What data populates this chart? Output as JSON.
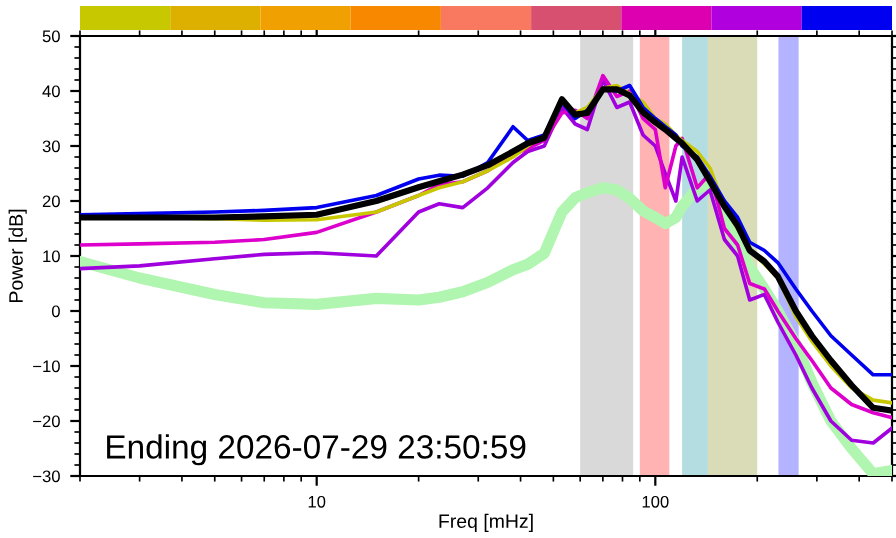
{
  "chart_data": {
    "type": "line",
    "xlabel": "Freq [mHz]",
    "ylabel": "Power [dB]",
    "log": "x",
    "annotations": [
      "Ending 2026-07-29 23:50:59"
    ],
    "x": [
      2,
      3,
      5,
      7,
      10,
      15,
      20,
      23,
      27,
      32,
      38,
      42,
      47,
      53,
      58,
      63,
      70,
      77,
      84,
      92,
      100,
      107,
      115,
      120,
      133,
      145,
      160,
      175,
      190,
      210,
      230,
      260,
      290,
      330,
      380,
      440,
      500
    ],
    "xlim": [
      2,
      500
    ],
    "xticks": [
      10,
      100
    ],
    "ylim": [
      -30,
      50
    ],
    "yticks": [
      -30,
      -20,
      -10,
      0,
      10,
      20,
      30,
      40,
      50
    ],
    "bands": [
      {
        "axis": "x",
        "from": 60,
        "to": 86,
        "color": "#d9d9d9"
      },
      {
        "axis": "x",
        "from": 90,
        "to": 110,
        "color": "#ffb3b3"
      },
      {
        "axis": "x",
        "from": 120,
        "to": 143,
        "color": "#b3dde0"
      },
      {
        "axis": "x",
        "from": 143,
        "to": 200,
        "color": "#dadcb8"
      },
      {
        "axis": "x",
        "from": 231,
        "to": 265,
        "color": "#b3b3ff"
      }
    ],
    "series": [
      {
        "color": "#b0f5b0",
        "values": [
          9,
          6,
          3,
          1.5,
          1.2,
          2.3,
          2,
          2.5,
          3.5,
          5.2,
          7.5,
          8.5,
          10.5,
          18,
          20.6,
          21.5,
          22.4,
          22,
          20.5,
          18.2,
          17,
          15.9,
          17,
          19,
          22.4,
          23,
          17,
          12,
          8,
          4,
          0,
          -6,
          -13,
          -20,
          -25,
          -29.6,
          -29
        ]
      },
      {
        "color": "#a000dd",
        "values": [
          7.7,
          8.2,
          9.5,
          10.3,
          10.6,
          10,
          18,
          19.5,
          18.8,
          22.4,
          27,
          29,
          30,
          37,
          34,
          33,
          42,
          37,
          38,
          32,
          30,
          25,
          20,
          28,
          20,
          22,
          13,
          10,
          2,
          3,
          -2,
          -8,
          -14,
          -20,
          -23.5,
          -24,
          -21.3
        ]
      },
      {
        "color": "#dd00cc",
        "values": [
          12,
          12.2,
          12.5,
          13,
          14.3,
          18,
          21,
          23,
          23.5,
          25.5,
          28.5,
          29.5,
          31,
          36,
          36.5,
          35,
          42.8,
          39,
          40,
          35,
          33,
          22.4,
          30,
          31.4,
          22.4,
          25,
          15,
          12,
          5,
          4,
          0,
          -5,
          -9,
          -14,
          -17,
          -18.5,
          -19.4
        ]
      },
      {
        "color": "#c8c800",
        "values": [
          17,
          17,
          16.8,
          16.5,
          16.6,
          18,
          21,
          22.4,
          23.5,
          25.5,
          28,
          30,
          32,
          38,
          36,
          37,
          40.5,
          41,
          39.5,
          38,
          35,
          34,
          32,
          31,
          29,
          26,
          19,
          15,
          11,
          8.5,
          6,
          -1,
          -5.5,
          -10,
          -14,
          -16.2,
          -16.7
        ]
      },
      {
        "color": "#0000ee",
        "values": [
          17.5,
          17.7,
          18,
          18.3,
          18.8,
          21,
          24,
          24.7,
          24.5,
          27,
          33.5,
          31,
          32,
          38,
          35,
          36.5,
          40.5,
          40,
          41,
          37,
          35,
          33.5,
          32,
          30,
          28,
          24.5,
          20,
          17,
          12.5,
          11,
          8.8,
          4,
          0,
          -4.5,
          -8,
          -11.6,
          -11.6
        ]
      },
      {
        "color": "#000000",
        "values": [
          17,
          17,
          17,
          17.2,
          17.5,
          20,
          22.5,
          23.6,
          24.8,
          26.5,
          29,
          30.5,
          31.5,
          38.5,
          35.7,
          36,
          40.3,
          40.3,
          39.2,
          36.1,
          34.3,
          33,
          31.4,
          30.5,
          27.5,
          23.6,
          19,
          15.5,
          11,
          9,
          6.3,
          0,
          -4.5,
          -9,
          -13.5,
          -17.6,
          -18.1
        ]
      }
    ]
  }
}
